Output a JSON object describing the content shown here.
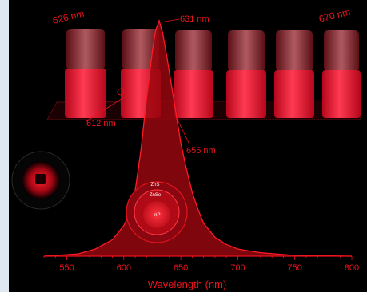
{
  "chart_data": {
    "type": "area",
    "title": "",
    "xlabel": "Wavelength (nm)",
    "ylabel": "",
    "xlim": [
      530,
      800
    ],
    "xticks": [
      550,
      600,
      650,
      700,
      750,
      800
    ],
    "grid": false,
    "series": [
      {
        "name": "",
        "x": [
          530,
          560,
          575,
          590,
          600,
          605,
          610,
          615,
          620,
          625,
          628,
          631,
          634,
          638,
          642,
          646,
          650,
          655,
          660,
          665,
          670,
          680,
          690,
          700,
          720,
          745,
          770,
          800
        ],
        "y": [
          0,
          0.01,
          0.03,
          0.07,
          0.13,
          0.18,
          0.28,
          0.45,
          0.67,
          0.87,
          0.96,
          1.0,
          0.95,
          0.84,
          0.72,
          0.6,
          0.48,
          0.37,
          0.27,
          0.2,
          0.14,
          0.08,
          0.05,
          0.03,
          0.015,
          0.005,
          0.002,
          0
        ]
      }
    ],
    "annotations": [
      "626 nm",
      "631 nm",
      "670 nm",
      "612 nm",
      "655 nm"
    ],
    "inset": {
      "shells": [
        "ZnS",
        "ZnSe",
        "InP"
      ]
    }
  }
}
